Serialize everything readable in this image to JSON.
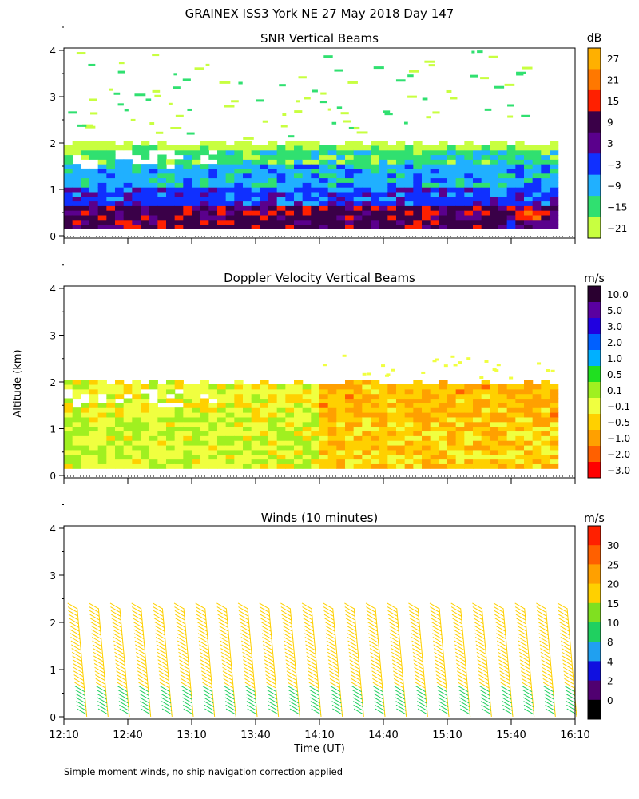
{
  "figure": {
    "title": "GRAINEX ISS3 York NE  27 May 2018 Day 147",
    "ylabel": "Altitude (km)",
    "xlabel": "Time (UT)",
    "footnote": "Simple moment winds, no ship navigation correction applied"
  },
  "chart_data": [
    {
      "type": "heatmap",
      "title": "SNR Vertical Beams",
      "x_tick_labels": [
        "12:10",
        "12:40",
        "13:10",
        "13:40",
        "14:10",
        "14:40",
        "15:10",
        "15:40",
        "16:10"
      ],
      "x_range": [
        "12:10",
        "16:10"
      ],
      "y_ticks": [
        0,
        1,
        2,
        3,
        4
      ],
      "ylim": [
        0,
        4.1
      ],
      "colorbar": {
        "unit": "dB",
        "labels": [
          "27",
          "21",
          "15",
          "9",
          "3",
          "−3",
          "−9",
          "−15",
          "−21"
        ],
        "colors": [
          "#ffb000",
          "#ff7800",
          "#ff2000",
          "#3a0048",
          "#5a008c",
          "#1030ff",
          "#20b0ff",
          "#30e070",
          "#c8ff40"
        ]
      },
      "summary_layers": [
        {
          "from_km": 0.2,
          "to_km": 0.6,
          "level": "9 dB (strongest near surface, max ~15 dB near 15:50)"
        },
        {
          "from_km": 0.6,
          "to_km": 1.0,
          "level": "-3 dB"
        },
        {
          "from_km": 1.0,
          "to_km": 1.5,
          "level": "-9 dB"
        },
        {
          "from_km": 1.5,
          "to_km": 2.0,
          "level": "-15 dB"
        },
        {
          "from_km": 2.0,
          "to_km": 4.0,
          "level": "sparse -21 dB"
        }
      ]
    },
    {
      "type": "heatmap",
      "title": "Doppler Velocity Vertical Beams",
      "x_tick_labels": [
        "12:10",
        "12:40",
        "13:10",
        "13:40",
        "14:10",
        "14:40",
        "15:10",
        "15:40",
        "16:10"
      ],
      "y_ticks": [
        0,
        1,
        2,
        3,
        4
      ],
      "ylim": [
        0,
        4.1
      ],
      "colorbar": {
        "unit": "m/s",
        "labels": [
          "10.0",
          "5.0",
          "3.0",
          "2.0",
          "1.0",
          "0.5",
          "0.1",
          "−0.1",
          "−0.5",
          "−1.0",
          "−2.0",
          "−3.0"
        ],
        "colors": [
          "#2a0030",
          "#5a00a0",
          "#2000e0",
          "#0060ff",
          "#00b0ff",
          "#20e020",
          "#a0f020",
          "#f0ff40",
          "#ffd000",
          "#ffa000",
          "#ff6000",
          "#ff0000"
        ]
      },
      "summary": "mostly -0.1 to -1.0 m/s below 2 km; more negative (orange) after 14:10"
    },
    {
      "type": "scatter",
      "title": "Winds (10 minutes)",
      "x_tick_labels": [
        "12:10",
        "12:40",
        "13:10",
        "13:40",
        "14:10",
        "14:40",
        "15:10",
        "15:40",
        "16:10"
      ],
      "y_ticks": [
        0,
        1,
        2,
        3,
        4
      ],
      "ylim": [
        0,
        4.1
      ],
      "colorbar": {
        "unit": "m/s",
        "labels": [
          "30",
          "25",
          "20",
          "15",
          "10",
          "8",
          "4",
          "2",
          "0"
        ],
        "colors": [
          "#ff2000",
          "#ff6000",
          "#ffa000",
          "#ffd000",
          "#80e020",
          "#20d060",
          "#20a0f0",
          "#1010e0",
          "#500070",
          "#000000"
        ]
      },
      "profile_times_min": [
        10,
        20,
        30,
        40,
        50,
        60,
        70,
        80,
        90,
        100,
        110,
        120,
        130,
        140,
        150,
        160,
        170,
        180,
        190,
        200,
        210,
        220,
        230,
        240
      ],
      "profile_top_km": 2.3,
      "barb_speed_by_altitude": [
        {
          "from_km": 0.0,
          "to_km": 0.6,
          "speed_ms": 8
        },
        {
          "from_km": 0.6,
          "to_km": 2.3,
          "speed_ms": 15
        }
      ]
    }
  ]
}
